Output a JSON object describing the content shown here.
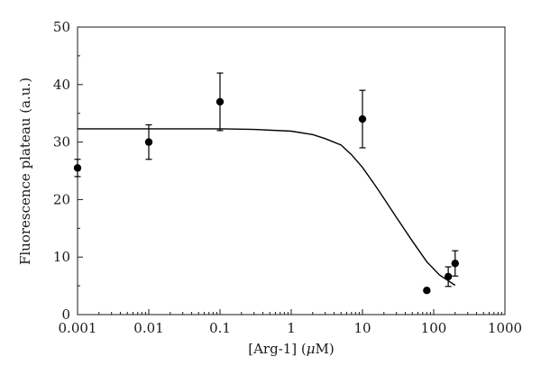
{
  "chart_data": {
    "type": "scatter",
    "xlabel": "[Arg-1] (",
    "xlabel_unit_symbol": "μ",
    "xlabel_unit_rest": "M)",
    "ylabel": "Fluorescence plateau (a.u.)",
    "x_scale": "log",
    "xlim": [
      0.001,
      1000
    ],
    "ylim": [
      0,
      50
    ],
    "x_ticks": [
      0.001,
      0.01,
      0.1,
      1,
      10,
      100,
      1000
    ],
    "x_tick_labels": [
      "0.001",
      "0.01",
      "0.1",
      "1",
      "10",
      "100",
      "1000"
    ],
    "y_ticks": [
      0,
      10,
      20,
      30,
      40,
      50
    ],
    "y_tick_labels": [
      "0",
      "10",
      "20",
      "30",
      "40",
      "50"
    ],
    "grid": false,
    "legend": "none",
    "points": [
      {
        "x": 0.001,
        "y": 25.5,
        "err": 1.5
      },
      {
        "x": 0.01,
        "y": 30.0,
        "err": 3.0
      },
      {
        "x": 0.1,
        "y": 37.0,
        "err": 5.0
      },
      {
        "x": 10,
        "y": 34.0,
        "err": 5.0
      },
      {
        "x": 80,
        "y": 4.2,
        "err": 0
      },
      {
        "x": 160,
        "y": 6.6,
        "err": 1.7
      },
      {
        "x": 200,
        "y": 8.9,
        "err": 2.2
      }
    ],
    "fit_curve": {
      "x": [
        0.001,
        0.01,
        0.1,
        0.3,
        1,
        2,
        3,
        5,
        7,
        10,
        15,
        20,
        30,
        50,
        80,
        120,
        160,
        200
      ],
      "y": [
        32.3,
        32.3,
        32.3,
        32.2,
        31.9,
        31.3,
        30.6,
        29.5,
        27.8,
        25.6,
        22.5,
        20.2,
        16.9,
        12.8,
        9.2,
        6.9,
        5.9,
        5.1
      ]
    },
    "colors": {
      "marker": "#000000",
      "line": "#000000",
      "axis": "#1a1a1a"
    }
  }
}
